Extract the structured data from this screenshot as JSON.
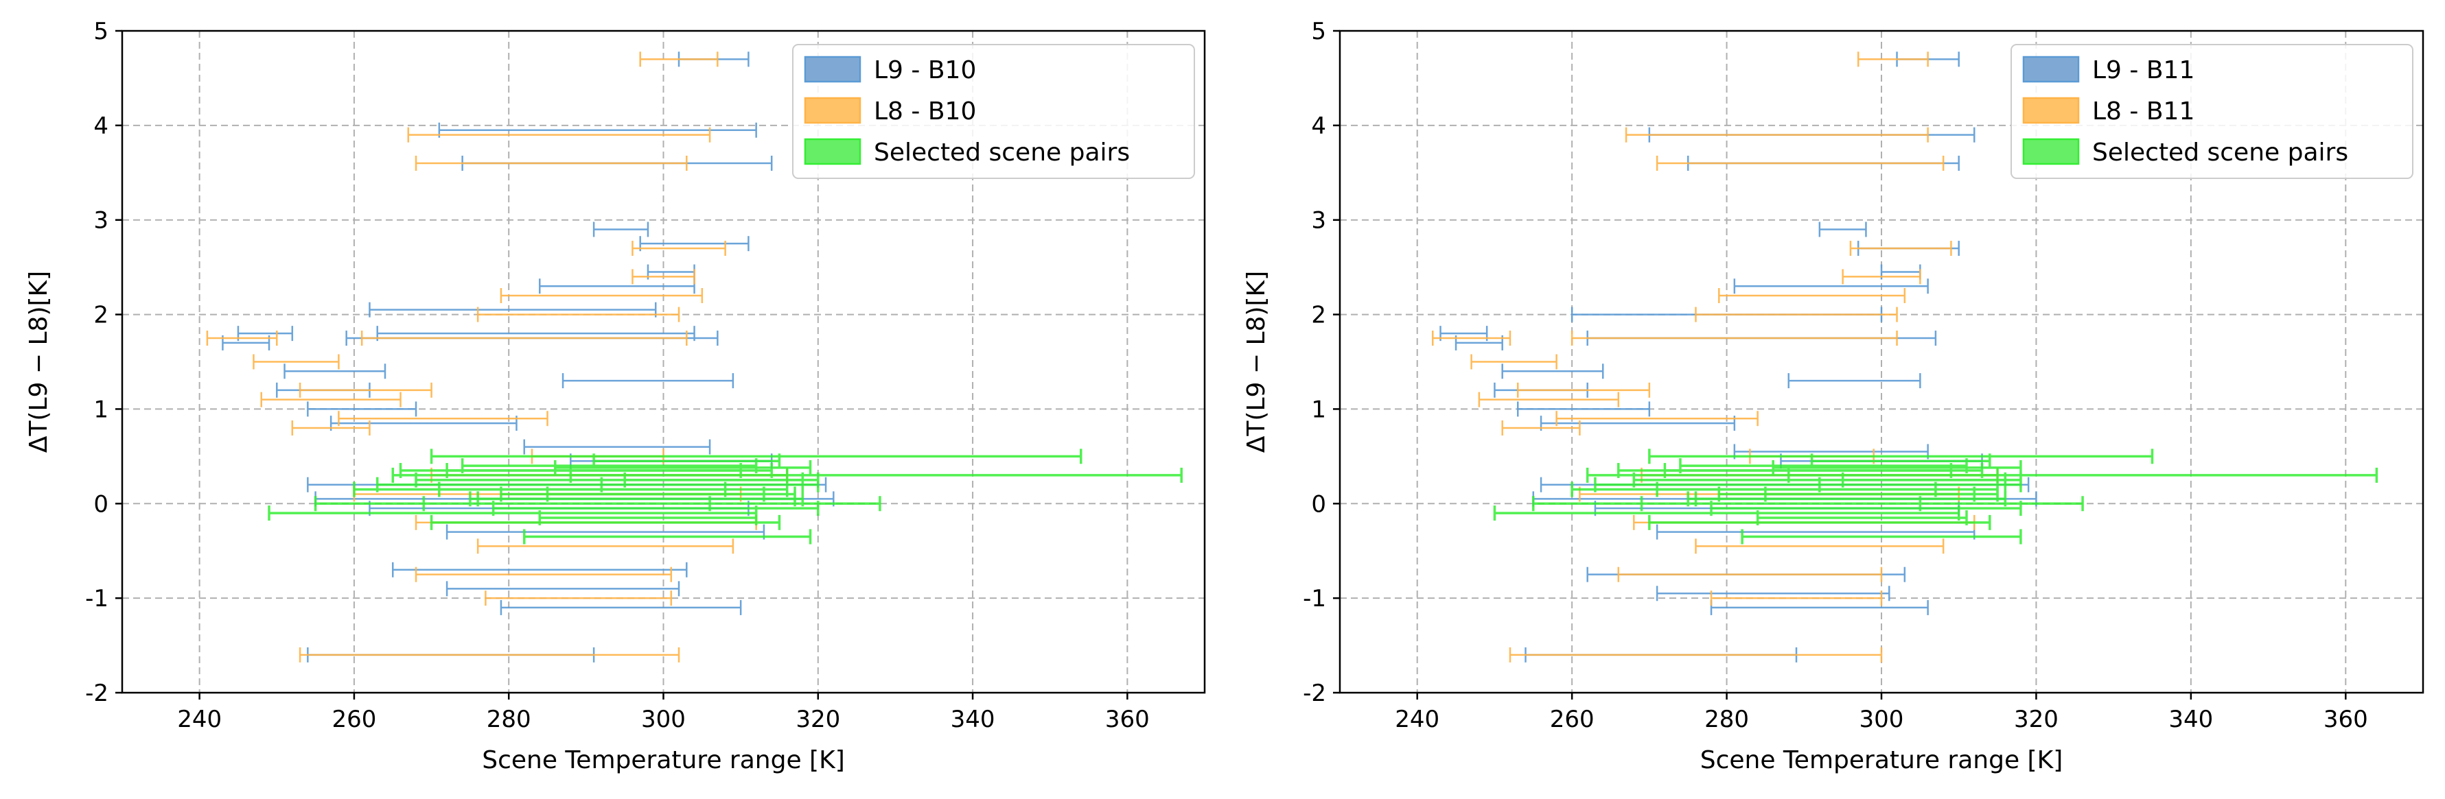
{
  "chart_data": [
    {
      "type": "errorbar-range",
      "xlabel": "Scene Temperature range [K]",
      "ylabel": "ΔT(L9 − L8)[K]",
      "xlim": [
        230,
        370
      ],
      "ylim": [
        -2,
        5
      ],
      "xticks": [
        240,
        260,
        280,
        300,
        320,
        340,
        360
      ],
      "yticks": [
        -2,
        -1,
        0,
        1,
        2,
        3,
        4,
        5
      ],
      "grid": true,
      "legend_position": "top-right",
      "series": [
        {
          "name": "L9 - B10",
          "color": "#5b9bd5",
          "ranges": [
            [
              302,
              311,
              4.7
            ],
            [
              271,
              312,
              3.95
            ],
            [
              274,
              314,
              3.6
            ],
            [
              291,
              298,
              2.9
            ],
            [
              297,
              311,
              2.75
            ],
            [
              298,
              304,
              2.45
            ],
            [
              284,
              304,
              2.3
            ],
            [
              262,
              299,
              2.05
            ],
            [
              263,
              304,
              1.8
            ],
            [
              245,
              252,
              1.8
            ],
            [
              243,
              249,
              1.7
            ],
            [
              259,
              307,
              1.75
            ],
            [
              287,
              309,
              1.3
            ],
            [
              251,
              264,
              1.4
            ],
            [
              250,
              262,
              1.2
            ],
            [
              254,
              268,
              1.0
            ],
            [
              257,
              281,
              0.85
            ],
            [
              282,
              306,
              0.6
            ],
            [
              288,
              314,
              0.45
            ],
            [
              254,
              321,
              0.2
            ],
            [
              255,
              322,
              0.05
            ],
            [
              262,
              311,
              -0.05
            ],
            [
              272,
              313,
              -0.3
            ],
            [
              265,
              303,
              -0.7
            ],
            [
              272,
              302,
              -0.9
            ],
            [
              279,
              310,
              -1.1
            ],
            [
              254,
              291,
              -1.6
            ]
          ]
        },
        {
          "name": "L8 - B10",
          "color": "#ffb347",
          "ranges": [
            [
              297,
              307,
              4.7
            ],
            [
              267,
              306,
              3.9
            ],
            [
              268,
              303,
              3.6
            ],
            [
              296,
              308,
              2.7
            ],
            [
              296,
              304,
              2.4
            ],
            [
              279,
              305,
              2.2
            ],
            [
              276,
              302,
              2.0
            ],
            [
              241,
              250,
              1.75
            ],
            [
              261,
              303,
              1.75
            ],
            [
              247,
              258,
              1.5
            ],
            [
              253,
              270,
              1.2
            ],
            [
              248,
              266,
              1.1
            ],
            [
              252,
              262,
              0.8
            ],
            [
              258,
              285,
              0.9
            ],
            [
              283,
              300,
              0.5
            ],
            [
              270,
              316,
              0.3
            ],
            [
              260,
              310,
              0.1
            ],
            [
              268,
              312,
              -0.2
            ],
            [
              276,
              309,
              -0.45
            ],
            [
              268,
              301,
              -0.75
            ],
            [
              277,
              301,
              -1.0
            ],
            [
              253,
              302,
              -1.6
            ]
          ]
        },
        {
          "name": "Selected scene pairs",
          "color": "#33ee33",
          "ranges": [
            [
              270,
              354,
              0.5
            ],
            [
              265,
              367,
              0.3
            ],
            [
              249,
              312,
              -0.1
            ],
            [
              255,
              328,
              0.0
            ],
            [
              263,
              320,
              0.2
            ],
            [
              271,
              316,
              0.15
            ],
            [
              275,
              318,
              0.05
            ],
            [
              282,
              319,
              -0.35
            ],
            [
              272,
              314,
              0.35
            ],
            [
              268,
              318,
              0.25
            ],
            [
              285,
              317,
              0.1
            ],
            [
              278,
              320,
              -0.05
            ],
            [
              274,
              312,
              0.4
            ],
            [
              270,
              315,
              -0.2
            ],
            [
              288,
              316,
              0.3
            ],
            [
              292,
              318,
              0.2
            ],
            [
              260,
              308,
              0.15
            ],
            [
              266,
              310,
              0.35
            ],
            [
              276,
              317,
              0.05
            ],
            [
              284,
              312,
              -0.15
            ],
            [
              291,
              315,
              0.45
            ],
            [
              279,
              313,
              0.1
            ],
            [
              295,
              320,
              0.25
            ],
            [
              269,
              306,
              0.0
            ],
            [
              286,
              319,
              0.38
            ]
          ]
        }
      ]
    },
    {
      "type": "errorbar-range",
      "xlabel": "Scene Temperature range [K]",
      "ylabel": "ΔT(L9 − L8)[K]",
      "xlim": [
        230,
        370
      ],
      "ylim": [
        -2,
        5
      ],
      "xticks": [
        240,
        260,
        280,
        300,
        320,
        340,
        360
      ],
      "yticks": [
        -2,
        -1,
        0,
        1,
        2,
        3,
        4,
        5
      ],
      "grid": true,
      "legend_position": "top-right",
      "series": [
        {
          "name": "L9 - B11",
          "color": "#5b9bd5",
          "ranges": [
            [
              302,
              310,
              4.7
            ],
            [
              270,
              312,
              3.9
            ],
            [
              275,
              310,
              3.6
            ],
            [
              292,
              298,
              2.9
            ],
            [
              297,
              310,
              2.7
            ],
            [
              300,
              305,
              2.45
            ],
            [
              281,
              306,
              2.3
            ],
            [
              260,
              300,
              2.0
            ],
            [
              243,
              249,
              1.8
            ],
            [
              245,
              251,
              1.7
            ],
            [
              262,
              307,
              1.75
            ],
            [
              288,
              305,
              1.3
            ],
            [
              251,
              264,
              1.4
            ],
            [
              250,
              262,
              1.2
            ],
            [
              253,
              270,
              1.0
            ],
            [
              256,
              281,
              0.85
            ],
            [
              281,
              306,
              0.55
            ],
            [
              287,
              313,
              0.45
            ],
            [
              256,
              319,
              0.2
            ],
            [
              255,
              320,
              0.05
            ],
            [
              263,
              310,
              -0.05
            ],
            [
              271,
              312,
              -0.3
            ],
            [
              262,
              303,
              -0.75
            ],
            [
              271,
              301,
              -0.95
            ],
            [
              278,
              306,
              -1.1
            ],
            [
              254,
              289,
              -1.6
            ]
          ]
        },
        {
          "name": "L8 - B11",
          "color": "#ffb347",
          "ranges": [
            [
              297,
              306,
              4.7
            ],
            [
              267,
              306,
              3.9
            ],
            [
              271,
              308,
              3.6
            ],
            [
              296,
              309,
              2.7
            ],
            [
              295,
              305,
              2.4
            ],
            [
              279,
              303,
              2.2
            ],
            [
              276,
              302,
              2.0
            ],
            [
              242,
              252,
              1.75
            ],
            [
              260,
              302,
              1.75
            ],
            [
              247,
              258,
              1.5
            ],
            [
              253,
              270,
              1.2
            ],
            [
              248,
              266,
              1.1
            ],
            [
              251,
              261,
              0.8
            ],
            [
              258,
              284,
              0.9
            ],
            [
              283,
              299,
              0.5
            ],
            [
              269,
              315,
              0.3
            ],
            [
              261,
              310,
              0.1
            ],
            [
              268,
              312,
              -0.2
            ],
            [
              276,
              308,
              -0.45
            ],
            [
              266,
              300,
              -0.75
            ],
            [
              278,
              300,
              -1.0
            ],
            [
              252,
              300,
              -1.6
            ]
          ]
        },
        {
          "name": "Selected scene pairs",
          "color": "#33ee33",
          "ranges": [
            [
              270,
              335,
              0.5
            ],
            [
              262,
              364,
              0.3
            ],
            [
              250,
              310,
              -0.1
            ],
            [
              255,
              326,
              0.0
            ],
            [
              263,
              318,
              0.2
            ],
            [
              271,
              315,
              0.15
            ],
            [
              275,
              316,
              0.05
            ],
            [
              282,
              318,
              -0.35
            ],
            [
              272,
              313,
              0.35
            ],
            [
              268,
              316,
              0.25
            ],
            [
              285,
              315,
              0.1
            ],
            [
              278,
              318,
              -0.05
            ],
            [
              274,
              311,
              0.4
            ],
            [
              270,
              314,
              -0.2
            ],
            [
              288,
              315,
              0.3
            ],
            [
              292,
              316,
              0.2
            ],
            [
              260,
              307,
              0.15
            ],
            [
              266,
              309,
              0.35
            ],
            [
              276,
              316,
              0.05
            ],
            [
              284,
              311,
              -0.15
            ],
            [
              291,
              314,
              0.45
            ],
            [
              279,
              312,
              0.1
            ],
            [
              295,
              318,
              0.25
            ],
            [
              269,
              305,
              0.0
            ],
            [
              286,
              318,
              0.38
            ]
          ]
        }
      ]
    }
  ]
}
